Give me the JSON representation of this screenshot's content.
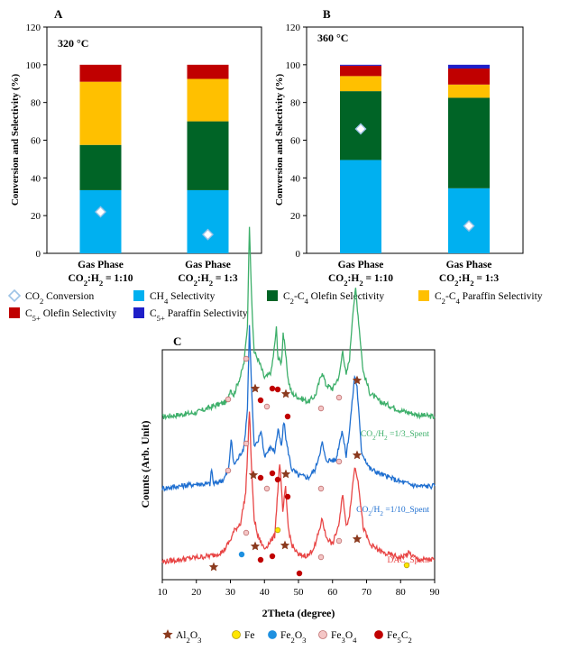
{
  "colors": {
    "ch4": "#00B0F0",
    "olefin_c2c4": "#006426",
    "paraffin_c2c4": "#FFC000",
    "olefin_c5": "#C00000",
    "paraffin_c5": "#1F1FC8",
    "co2_marker": "#FFFFFF",
    "co2_marker_edge": "#9DC3E6",
    "xrd_top": "#3DAF6A",
    "xrd_mid": "#1F6FD0",
    "xrd_bot": "#E84545",
    "al2o3": "#8B3A1E",
    "fe": "#FFE600",
    "fe2o3": "#1E90E0",
    "fe3o4": "#F4C6C6",
    "fe5c2": "#C00000"
  },
  "legend_top": [
    {
      "key": "co2",
      "label": "CO",
      "sub": "2",
      "rest": " Conversion"
    },
    {
      "key": "ch4",
      "label": "CH",
      "sub": "4",
      "rest": " Selectivity"
    },
    {
      "key": "olefin_c2c4",
      "label": "C",
      "sub": "2",
      "rest": "-C",
      "sub2": "4",
      "rest2": " Olefin Selectivity"
    },
    {
      "key": "paraffin_c2c4",
      "label": "C",
      "sub": "2",
      "rest": "-C",
      "sub2": "4",
      "rest2": " Paraffin Selectivity"
    },
    {
      "key": "olefin_c5",
      "label": "C",
      "sub": "5+",
      "rest": " Olefin Selectivity"
    },
    {
      "key": "paraffin_c5",
      "label": "C",
      "sub": "5+",
      "rest": " Paraffin Selectivity"
    }
  ],
  "legend_bottom": [
    {
      "key": "al2o3",
      "label": "Al",
      "sub": "2",
      "rest": "O",
      "sub2": "3",
      "rest2": ""
    },
    {
      "key": "fe",
      "label": "Fe",
      "sub": "",
      "rest": ""
    },
    {
      "key": "fe2o3",
      "label": "Fe",
      "sub": "2",
      "rest": "O",
      "sub2": "3",
      "rest2": ""
    },
    {
      "key": "fe3o4",
      "label": "Fe",
      "sub": "3",
      "rest": "O",
      "sub2": "4",
      "rest2": ""
    },
    {
      "key": "fe5c2",
      "label": "Fe",
      "sub": "5",
      "rest": "C",
      "sub2": "2",
      "rest2": ""
    }
  ],
  "chart_data": [
    {
      "type": "bar",
      "panel": "A",
      "annotation": "320 °C",
      "ylabel": "Conversion and Selectivity (%)",
      "ylim": [
        0,
        120
      ],
      "yticks": [
        "0",
        "20",
        "40",
        "60",
        "80",
        "100",
        "120"
      ],
      "categories": [
        {
          "line1": "Gas Phase",
          "line2a": "CO",
          "line2sub1": "2",
          "line2b": ":H",
          "line2sub2": "2",
          "line2c": " = 1:10"
        },
        {
          "line1": "Gas Phase",
          "line2a": "CO",
          "line2sub1": "2",
          "line2b": ":H",
          "line2sub2": "2",
          "line2c": " = 1:3"
        }
      ],
      "series": [
        {
          "key": "ch4",
          "values": [
            33.5,
            33.5
          ]
        },
        {
          "key": "olefin_c2c4",
          "values": [
            24,
            36.5
          ]
        },
        {
          "key": "paraffin_c2c4",
          "values": [
            33.5,
            22.5
          ]
        },
        {
          "key": "olefin_c5",
          "values": [
            9,
            7.5
          ]
        },
        {
          "key": "paraffin_c5",
          "values": [
            0,
            0
          ]
        }
      ],
      "co2_conversion": [
        22,
        10
      ]
    },
    {
      "type": "bar",
      "panel": "B",
      "annotation": "360 °C",
      "ylabel": "Conversion and Selectivity (%)",
      "ylim": [
        0,
        120
      ],
      "yticks": [
        "0",
        "20",
        "40",
        "60",
        "80",
        "100",
        "120"
      ],
      "categories": [
        {
          "line1": "Gas Phase",
          "line2a": "CO",
          "line2sub1": "2",
          "line2b": ":H",
          "line2sub2": "2",
          "line2c": " = 1:10"
        },
        {
          "line1": "Gas Phase",
          "line2a": "CO",
          "line2sub1": "2",
          "line2b": ":H",
          "line2sub2": "2",
          "line2c": " = 1:3"
        }
      ],
      "series": [
        {
          "key": "ch4",
          "values": [
            49.5,
            34.5
          ]
        },
        {
          "key": "olefin_c2c4",
          "values": [
            36.5,
            48
          ]
        },
        {
          "key": "paraffin_c2c4",
          "values": [
            8,
            7
          ]
        },
        {
          "key": "olefin_c5",
          "values": [
            5.5,
            8.5
          ]
        },
        {
          "key": "paraffin_c5",
          "values": [
            0.5,
            2
          ]
        }
      ],
      "co2_conversion": [
        66,
        14.5
      ]
    },
    {
      "type": "line",
      "panel": "C",
      "xlabel": "2Theta (degree)",
      "ylabel": "Counts (Arb. Unit)",
      "xlim": [
        10,
        90
      ],
      "xticks": [
        "10",
        "20",
        "30",
        "40",
        "50",
        "60",
        "70",
        "80",
        "90"
      ],
      "series": [
        {
          "label_a": "CO",
          "label_sub1": "2",
          "label_b": "/H",
          "label_sub2": "2",
          "label_c": " =1/3_Spent",
          "color_key": "xrd_top",
          "baseline": 0.66,
          "points": [
            [
              10,
              0.03
            ],
            [
              20,
              0.05
            ],
            [
              25,
              0.08
            ],
            [
              29,
              0.1
            ],
            [
              30,
              0.16
            ],
            [
              31,
              0.13
            ],
            [
              32,
              0.18
            ],
            [
              33,
              0.22
            ],
            [
              34,
              0.28
            ],
            [
              35,
              0.45
            ],
            [
              35.6,
              0.92
            ],
            [
              36.4,
              0.5
            ],
            [
              37,
              0.33
            ],
            [
              38,
              0.3
            ],
            [
              39,
              0.26
            ],
            [
              40,
              0.21
            ],
            [
              41,
              0.22
            ],
            [
              42,
              0.24
            ],
            [
              43,
              0.36
            ],
            [
              43.5,
              0.44
            ],
            [
              44,
              0.3
            ],
            [
              45,
              0.28
            ],
            [
              45.5,
              0.42
            ],
            [
              46,
              0.35
            ],
            [
              47,
              0.2
            ],
            [
              48,
              0.14
            ],
            [
              50,
              0.12
            ],
            [
              53,
              0.1
            ],
            [
              55,
              0.13
            ],
            [
              57,
              0.24
            ],
            [
              58,
              0.18
            ],
            [
              60,
              0.16
            ],
            [
              62,
              0.22
            ],
            [
              63,
              0.34
            ],
            [
              64,
              0.22
            ],
            [
              65,
              0.3
            ],
            [
              66,
              0.52
            ],
            [
              66.8,
              0.62
            ],
            [
              67.5,
              0.5
            ],
            [
              69,
              0.24
            ],
            [
              71,
              0.14
            ],
            [
              74,
              0.1
            ],
            [
              80,
              0.06
            ],
            [
              85,
              0.04
            ],
            [
              90,
              0.03
            ]
          ]
        },
        {
          "label_a": "CO",
          "label_sub1": "2",
          "label_b": "/H",
          "label_sub2": "2",
          "label_c": " =1/10_Spent",
          "color_key": "xrd_mid",
          "baseline": 0.33,
          "points": [
            [
              10,
              0.03
            ],
            [
              20,
              0.05
            ],
            [
              24,
              0.05
            ],
            [
              24.5,
              0.12
            ],
            [
              25,
              0.05
            ],
            [
              28,
              0.07
            ],
            [
              29.5,
              0.12
            ],
            [
              30.2,
              0.26
            ],
            [
              31,
              0.14
            ],
            [
              32,
              0.16
            ],
            [
              34,
              0.22
            ],
            [
              35,
              0.4
            ],
            [
              35.6,
              0.78
            ],
            [
              36.4,
              0.42
            ],
            [
              37,
              0.22
            ],
            [
              38,
              0.24
            ],
            [
              39,
              0.3
            ],
            [
              40,
              0.18
            ],
            [
              42,
              0.22
            ],
            [
              43,
              0.2
            ],
            [
              44,
              0.3
            ],
            [
              45,
              0.22
            ],
            [
              45.7,
              0.34
            ],
            [
              46.5,
              0.24
            ],
            [
              48,
              0.12
            ],
            [
              50,
              0.09
            ],
            [
              53,
              0.08
            ],
            [
              55,
              0.12
            ],
            [
              57,
              0.24
            ],
            [
              58,
              0.16
            ],
            [
              61,
              0.16
            ],
            [
              62.8,
              0.3
            ],
            [
              64,
              0.18
            ],
            [
              65,
              0.3
            ],
            [
              66.5,
              0.55
            ],
            [
              67.2,
              0.5
            ],
            [
              68.5,
              0.2
            ],
            [
              71,
              0.12
            ],
            [
              75,
              0.09
            ],
            [
              80,
              0.06
            ],
            [
              85,
              0.04
            ],
            [
              90,
              0.04
            ]
          ]
        },
        {
          "label_a": "DAC_Spent",
          "label_sub1": "",
          "label_b": "",
          "label_sub2": "",
          "label_c": "",
          "color_key": "xrd_bot",
          "baseline": 0.0,
          "points": [
            [
              10,
              0.02
            ],
            [
              20,
              0.04
            ],
            [
              25,
              0.05
            ],
            [
              28,
              0.07
            ],
            [
              30,
              0.12
            ],
            [
              31,
              0.16
            ],
            [
              33,
              0.2
            ],
            [
              34.5,
              0.34
            ],
            [
              35.6,
              0.72
            ],
            [
              36.4,
              0.38
            ],
            [
              37,
              0.22
            ],
            [
              38,
              0.14
            ],
            [
              40,
              0.08
            ],
            [
              42,
              0.12
            ],
            [
              43,
              0.14
            ],
            [
              44.5,
              0.48
            ],
            [
              45.4,
              0.25
            ],
            [
              46.2,
              0.36
            ],
            [
              47,
              0.18
            ],
            [
              48,
              0.1
            ],
            [
              50,
              0.05
            ],
            [
              53,
              0.05
            ],
            [
              55,
              0.1
            ],
            [
              57,
              0.22
            ],
            [
              58,
              0.14
            ],
            [
              60,
              0.1
            ],
            [
              62,
              0.2
            ],
            [
              63,
              0.34
            ],
            [
              64,
              0.18
            ],
            [
              65,
              0.24
            ],
            [
              66.5,
              0.46
            ],
            [
              67.5,
              0.4
            ],
            [
              69,
              0.18
            ],
            [
              71,
              0.1
            ],
            [
              75,
              0.06
            ],
            [
              80,
              0.04
            ],
            [
              82.5,
              0.06
            ],
            [
              85,
              0.03
            ],
            [
              90,
              0.03
            ]
          ]
        }
      ]
    }
  ]
}
